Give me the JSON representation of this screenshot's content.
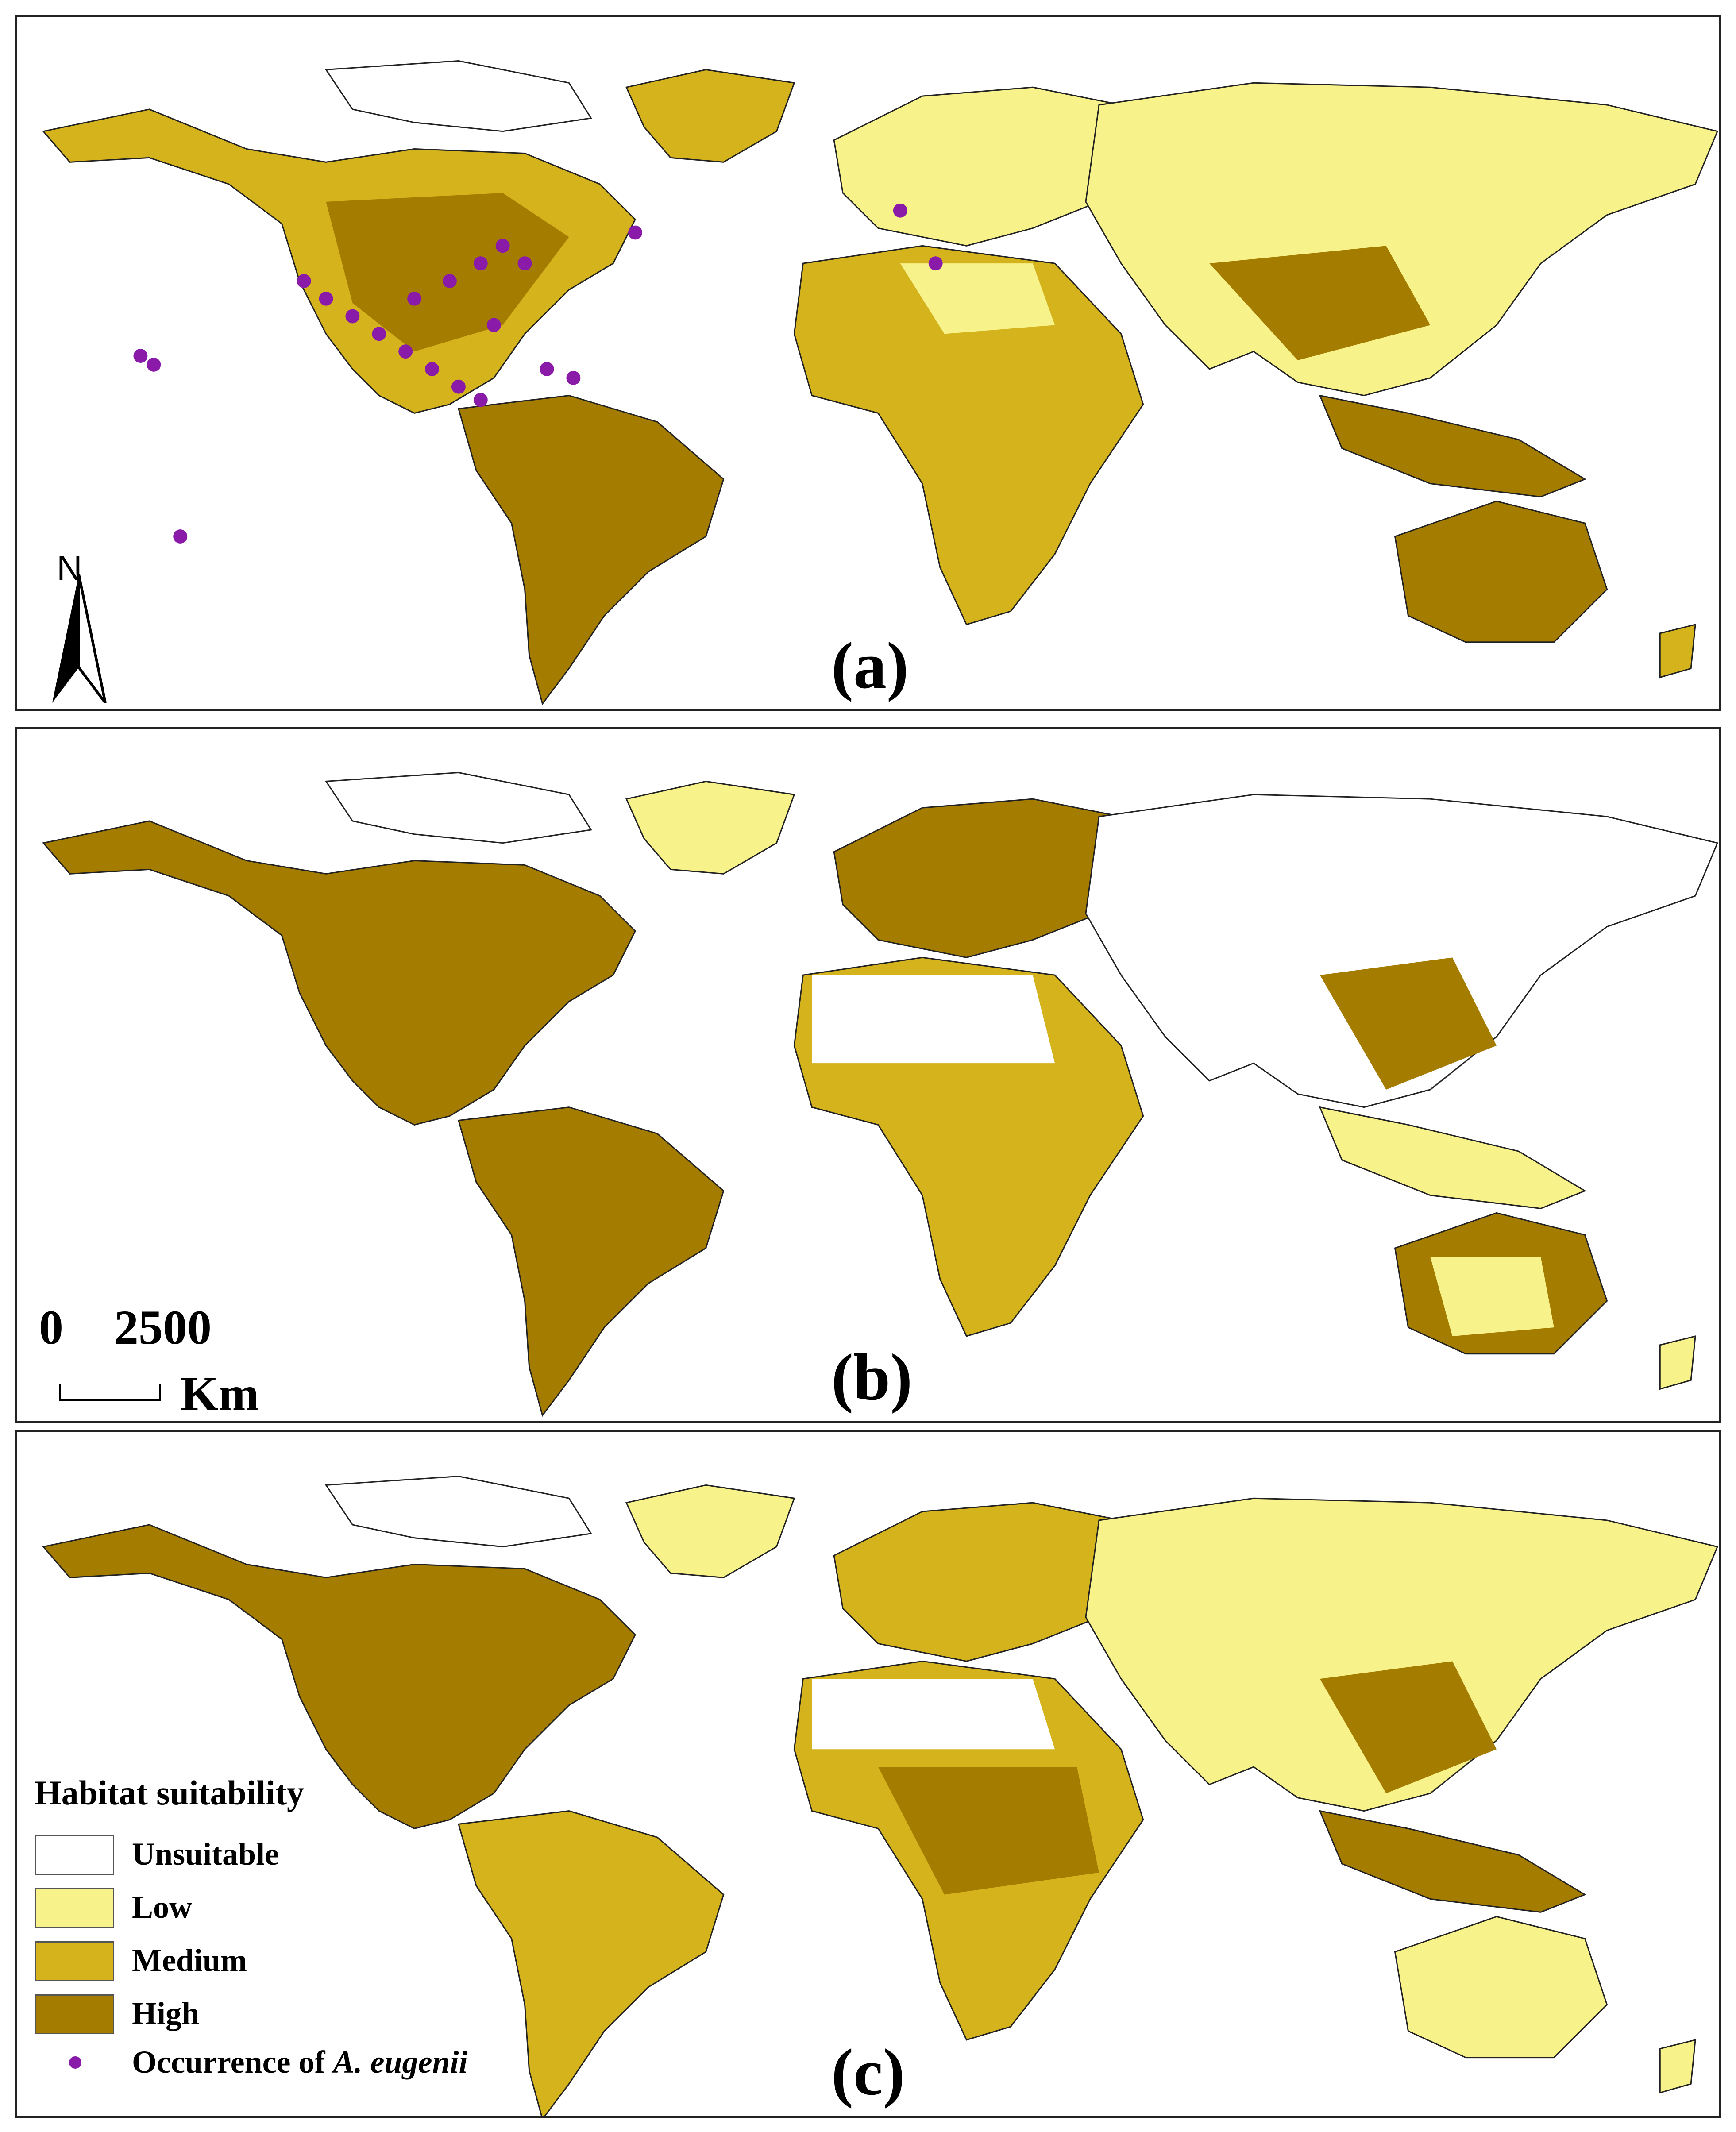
{
  "colors": {
    "unsuitable": "#ffffff",
    "low": "#f7f28a",
    "medium": "#d4b31c",
    "high": "#a47c00",
    "occurrence": "#8a1aa8",
    "border": "#222222"
  },
  "panels": [
    {
      "id": "a",
      "label": "(a)"
    },
    {
      "id": "b",
      "label": "(b)"
    },
    {
      "id": "c",
      "label": "(c)"
    }
  ],
  "north_arrow": {
    "letter": "N"
  },
  "scale_bar": {
    "zero": "0",
    "distance": "2500",
    "unit": "Km"
  },
  "legend": {
    "title": "Habitat suitability",
    "items": [
      {
        "label": "Unsuitable",
        "color": "#ffffff"
      },
      {
        "label": "Low",
        "color": "#f7f28a"
      },
      {
        "label": "Medium",
        "color": "#d4b31c"
      },
      {
        "label": "High",
        "color": "#a47c00"
      }
    ],
    "occurrence_prefix": "Occurrence of ",
    "occurrence_species": "A. eugenii"
  }
}
